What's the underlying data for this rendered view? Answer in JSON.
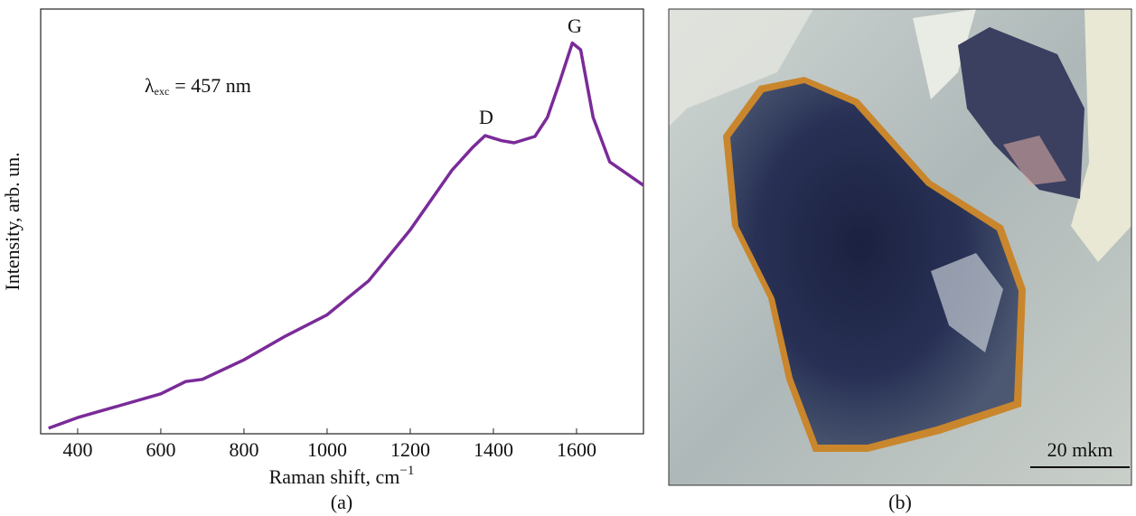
{
  "chart_data": {
    "type": "line",
    "x_label": "Raman shift, cm",
    "x_label_superscript": "−1",
    "y_label": "Intensity, arb. un.",
    "annotation": {
      "symbol": "λ",
      "subscript": "exc",
      "text": "= 457 nm"
    },
    "peak_labels": [
      "D",
      "G"
    ],
    "panel_label": "(a)",
    "color": "#7a2b98",
    "x": [
      330,
      400,
      500,
      600,
      660,
      700,
      800,
      900,
      1000,
      1100,
      1200,
      1250,
      1300,
      1350,
      1380,
      1420,
      1450,
      1500,
      1530,
      1560,
      1590,
      1610,
      1640,
      1680,
      1720,
      1761
    ],
    "values": [
      1.3,
      3.8,
      6.6,
      9.4,
      12.3,
      12.8,
      17.4,
      23,
      28,
      36,
      48,
      55,
      62,
      67.4,
      70.2,
      69,
      68.5,
      70,
      74.5,
      83,
      92,
      90.4,
      74.5,
      64,
      61.3,
      58.5
    ],
    "xlim": [
      311,
      1761
    ],
    "xticks": [
      400,
      600,
      800,
      1000,
      1200,
      1400,
      1600
    ],
    "ylim": [
      0,
      100
    ]
  },
  "photo": {
    "scale_bar": "20 mkm",
    "panel_label": "(b)"
  }
}
